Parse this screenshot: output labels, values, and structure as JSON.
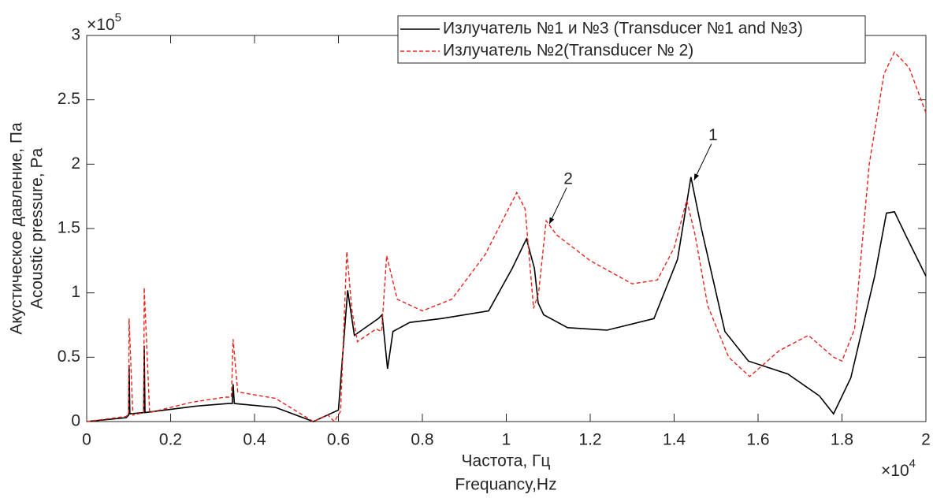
{
  "chart_data": {
    "type": "line",
    "xlabel": [
      "Частота, Гц",
      "Frequancy,Hz"
    ],
    "ylabel": [
      "Акустическое давление, Па",
      "Acoustic pressure, Pa"
    ],
    "x_multiplier": {
      "base": "×10",
      "exponent": "4"
    },
    "y_multiplier": {
      "base": "×10",
      "exponent": "5"
    },
    "xlim": [
      0,
      2
    ],
    "ylim": [
      0,
      3
    ],
    "xticks": [
      0,
      0.2,
      0.4,
      0.6,
      0.8,
      1,
      1.2,
      1.4,
      1.6,
      1.8,
      2
    ],
    "yticks": [
      0,
      0.5,
      1,
      1.5,
      2,
      2.5,
      3
    ],
    "grid": false,
    "legend": "upper right",
    "annotations": [
      {
        "text": "1",
        "x": 1.44,
        "y": 1.9
      },
      {
        "text": "2",
        "x": 1.095,
        "y": 1.56
      }
    ],
    "series": [
      {
        "name": "Излучатель №1 и №3 (Transducer №1 and №3)",
        "color": "#000000",
        "dash": "solid",
        "x": [
          0,
          0.094,
          0.1,
          0.101,
          0.103,
          0.136,
          0.137,
          0.139,
          0.26,
          0.338,
          0.347,
          0.349,
          0.352,
          0.45,
          0.54,
          0.6,
          0.622,
          0.638,
          0.695,
          0.704,
          0.717,
          0.73,
          0.77,
          0.845,
          0.958,
          1.014,
          1.048,
          1.067,
          1.076,
          1.089,
          1.146,
          1.24,
          1.352,
          1.408,
          1.44,
          1.465,
          1.521,
          1.577,
          1.671,
          1.746,
          1.78,
          1.821,
          1.878,
          1.906,
          1.925,
          1.953,
          2.0
        ],
        "values": [
          0,
          0.03,
          0.05,
          0.44,
          0.06,
          0.07,
          0.59,
          0.07,
          0.12,
          0.14,
          0.14,
          0.29,
          0.14,
          0.11,
          0.0,
          0.09,
          1.02,
          0.67,
          0.8,
          0.83,
          0.41,
          0.7,
          0.77,
          0.8,
          0.86,
          1.19,
          1.42,
          1.19,
          0.92,
          0.83,
          0.73,
          0.71,
          0.8,
          1.26,
          1.9,
          1.5,
          0.7,
          0.47,
          0.37,
          0.2,
          0.06,
          0.34,
          1.13,
          1.62,
          1.63,
          1.44,
          1.13
        ]
      },
      {
        "name": "Излучатель №2(Transducer № 2)",
        "color": "#e8241c",
        "dash": "dashed",
        "x": [
          0,
          0.094,
          0.1,
          0.101,
          0.11,
          0.136,
          0.137,
          0.15,
          0.25,
          0.33,
          0.345,
          0.349,
          0.36,
          0.45,
          0.54,
          0.575,
          0.59,
          0.605,
          0.62,
          0.632,
          0.645,
          0.69,
          0.703,
          0.715,
          0.74,
          0.8,
          0.87,
          0.95,
          1.025,
          1.045,
          1.065,
          1.077,
          1.095,
          1.12,
          1.2,
          1.3,
          1.36,
          1.4,
          1.43,
          1.45,
          1.48,
          1.53,
          1.58,
          1.65,
          1.72,
          1.78,
          1.8,
          1.83,
          1.865,
          1.9,
          1.925,
          1.96,
          2.0
        ],
        "values": [
          0,
          0.04,
          0.06,
          0.8,
          0.05,
          0.07,
          1.04,
          0.07,
          0.15,
          0.19,
          0.19,
          0.64,
          0.23,
          0.18,
          0.0,
          0.05,
          0.0,
          0.08,
          1.32,
          0.87,
          0.62,
          0.72,
          0.7,
          1.29,
          0.95,
          0.86,
          0.95,
          1.3,
          1.78,
          1.65,
          0.88,
          1.0,
          1.56,
          1.45,
          1.25,
          1.07,
          1.1,
          1.35,
          1.72,
          1.45,
          0.9,
          0.5,
          0.35,
          0.55,
          0.67,
          0.5,
          0.47,
          0.72,
          2.0,
          2.7,
          2.87,
          2.75,
          2.4
        ]
      }
    ]
  }
}
